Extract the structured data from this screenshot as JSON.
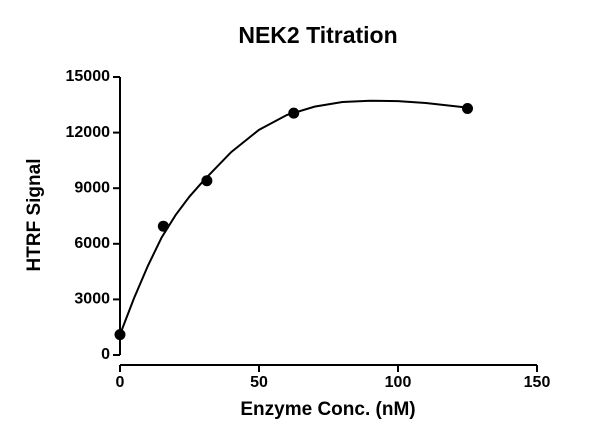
{
  "chart_data": {
    "type": "scatter",
    "title": "NEK2 Titration",
    "x_label": "Enzyme Conc. (nM)",
    "y_label": "HTRF Signal",
    "x": [
      0,
      15.6,
      31.25,
      62.5,
      125
    ],
    "values": [
      1100,
      6950,
      9400,
      13050,
      13300
    ],
    "color": "#000000",
    "xlim": [
      0,
      150
    ],
    "xticks": [
      0,
      50,
      100,
      150
    ],
    "ylim": [
      0,
      15000
    ],
    "yticks": [
      0,
      3000,
      6000,
      9000,
      12000,
      15000
    ],
    "fit": {
      "type": "line",
      "color": "#000000",
      "x": [
        0,
        5,
        10,
        15,
        20,
        25,
        30,
        40,
        50,
        60,
        70,
        80,
        90,
        100,
        110,
        125
      ],
      "values": [
        1100,
        3050,
        4800,
        6350,
        7550,
        8550,
        9400,
        10950,
        12150,
        12950,
        13400,
        13650,
        13720,
        13700,
        13600,
        13350
      ]
    }
  }
}
